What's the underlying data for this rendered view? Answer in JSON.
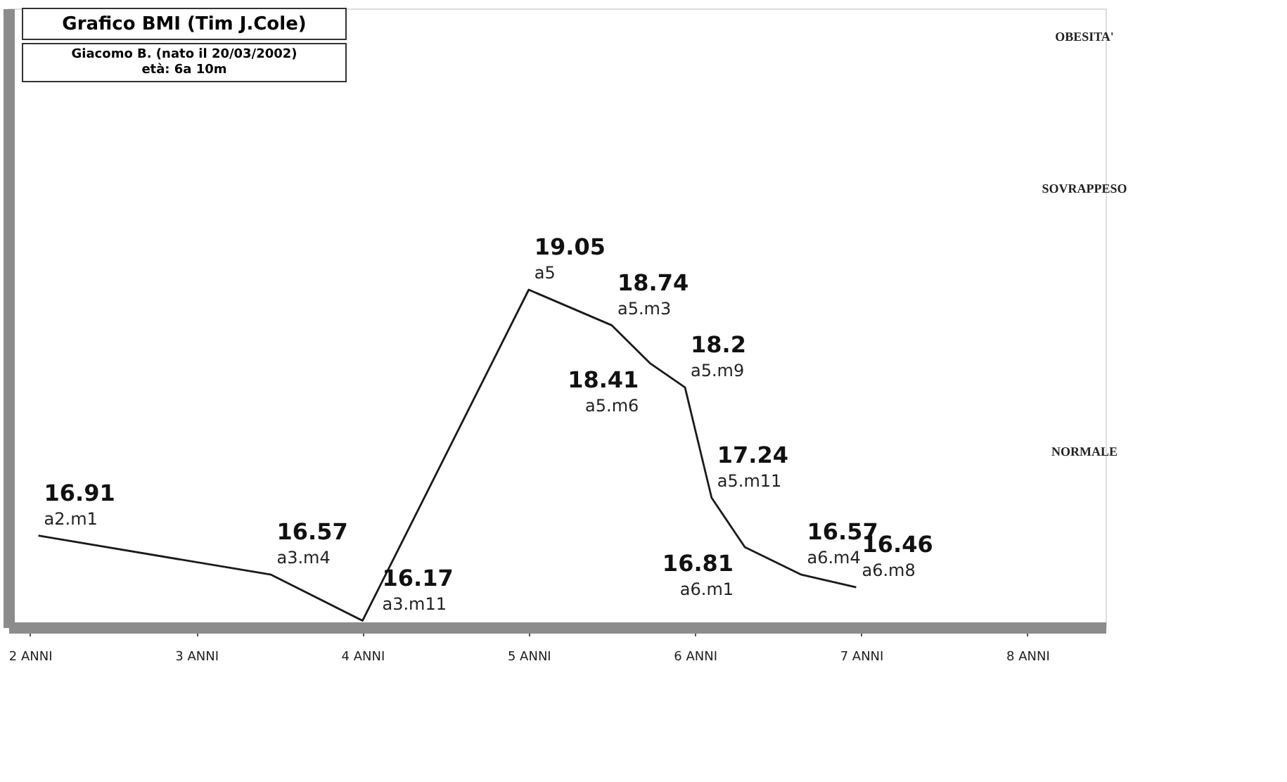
{
  "chart_data": {
    "type": "line",
    "title": "Grafico BMI (Tim J.Cole)",
    "subtitle": "Giacomo B. (nato il 20/03/2002)\netà: 6a 10m",
    "x": [
      2.05,
      3.45,
      4.0,
      5.0,
      5.5,
      5.73,
      5.94,
      6.1,
      6.3,
      6.64,
      6.97
    ],
    "series": [
      {
        "color": "#1a1a1a",
        "values": [
          16.91,
          16.57,
          16.17,
          19.05,
          18.74,
          18.41,
          18.2,
          17.24,
          16.81,
          16.57,
          16.46
        ]
      }
    ],
    "data_labels": true,
    "marker": "none",
    "line_style": "solid",
    "xlim": [
      1.87,
      8.47
    ],
    "xticks": [
      {
        "value": 2,
        "label": "2 ANNI"
      },
      {
        "value": 3,
        "label": "3 ANNI"
      },
      {
        "value": 4,
        "label": "4 ANNI"
      },
      {
        "value": 5,
        "label": "5 ANNI"
      },
      {
        "value": 6,
        "label": "6 ANNI"
      },
      {
        "value": 7,
        "label": "7 ANNI"
      },
      {
        "value": 8,
        "label": "8 ANNI"
      }
    ],
    "tick_labels": "x",
    "grid": false,
    "annotations": [
      {
        "text": "a2.m1",
        "x": 2.05,
        "y": 16.91
      },
      {
        "text": "a3.m4",
        "x": 3.45,
        "y": 16.57
      },
      {
        "text": "a3.m11",
        "x": 4.0,
        "y": 16.17
      },
      {
        "text": "a5",
        "x": 5.0,
        "y": 19.05
      },
      {
        "text": "a5.m3",
        "x": 5.5,
        "y": 18.74
      },
      {
        "text": "a5.m6",
        "x": 5.73,
        "y": 18.41
      },
      {
        "text": "a5.m9",
        "x": 5.94,
        "y": 18.2
      },
      {
        "text": "a5.m11",
        "x": 6.1,
        "y": 17.24
      },
      {
        "text": "a6.m1",
        "x": 6.3,
        "y": 16.81
      },
      {
        "text": "a6.m4",
        "x": 6.64,
        "y": 16.57
      },
      {
        "text": "a6.m8",
        "x": 6.97,
        "y": 16.46
      },
      "OBESITA'",
      "SOVRAPPESO",
      "NORMALE"
    ]
  }
}
